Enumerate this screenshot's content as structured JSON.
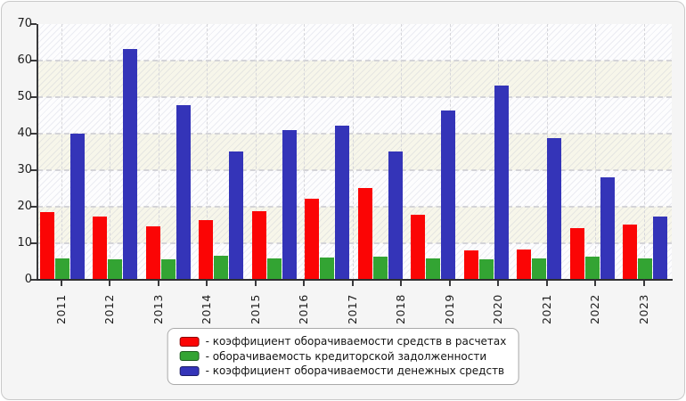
{
  "page": {
    "background": "#f5f5f5",
    "frame_border_color": "#c9c9c9",
    "plot_band_light": "#fdfdfe",
    "plot_band_cream": "#f7f6ea",
    "axis_color": "#3a3a3c",
    "grid_color": "#d4d4d8"
  },
  "legend": {
    "position": "bottom-center",
    "items": [
      {
        "label": "- коэффициент оборачиваемости средств в расчетах",
        "color": "#fb0505",
        "name": "legend-item-red"
      },
      {
        "label": "- оборачиваемость кредиторской задолженности",
        "color": "#33a433",
        "name": "legend-item-green"
      },
      {
        "label": "- коэффициент оборачиваемости денежных средств",
        "color": "#3434b8",
        "name": "legend-item-blue"
      }
    ]
  },
  "chart_data": {
    "type": "bar",
    "title": "",
    "xlabel": "",
    "ylabel": "",
    "ylim": [
      0,
      70
    ],
    "ytick_step": 10,
    "grid": true,
    "x_tick_labels": [
      "2011",
      "2012",
      "2013",
      "2014",
      "2015",
      "2016",
      "2017",
      "2018",
      "2019",
      "2020",
      "2021",
      "2022",
      "2023"
    ],
    "layout_note": "12 bar groups are spread evenly across the axis while 13 year ticks are drawn; the first group aligns with the 2011 tick and the last group with the 2023 tick, so groups drift relative to ticks as in the source image",
    "series": [
      {
        "name": "коэффициент оборачиваемости средств в расчетах",
        "color": "#fb0505",
        "values": [
          18.5,
          17.3,
          14.7,
          16.4,
          18.8,
          22.2,
          25.1,
          17.8,
          8.0,
          8.2,
          14.1,
          15.1
        ]
      },
      {
        "name": "оборачиваемость кредиторской задолженности",
        "color": "#33a433",
        "values": [
          5.8,
          5.5,
          5.7,
          6.7,
          5.9,
          6.1,
          6.3,
          5.8,
          5.6,
          5.8,
          6.3,
          5.9
        ]
      },
      {
        "name": "коэффициент оборачиваемости денежных средств",
        "color": "#3434b8",
        "values": [
          40.0,
          63.2,
          47.9,
          35.2,
          41.0,
          42.1,
          35.2,
          46.3,
          53.2,
          38.9,
          28.1,
          17.4
        ]
      }
    ]
  }
}
